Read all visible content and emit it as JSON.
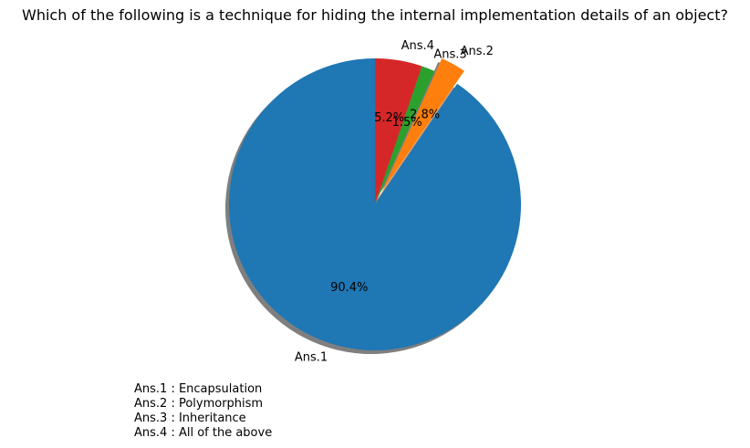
{
  "chart_data": {
    "type": "pie",
    "title": "Which of the following is a technique for hiding the internal implementation details of an object?",
    "start_angle_deg": 90,
    "direction": "counterclockwise",
    "shadow": true,
    "slices": [
      {
        "label": "Ans.1",
        "value": 90.4,
        "pct_label": "90.4%",
        "color": "#1f77b4",
        "exploded": false
      },
      {
        "label": "Ans.2",
        "value": 2.8,
        "pct_label": "2.8%",
        "color": "#ff7f0e",
        "exploded": true
      },
      {
        "label": "Ans.3",
        "value": 1.5,
        "pct_label": "1.5%",
        "color": "#2ca02c",
        "exploded": false
      },
      {
        "label": "Ans.4",
        "value": 5.2,
        "pct_label": "5.2%",
        "color": "#d62728",
        "exploded": false
      }
    ],
    "key_lines": [
      "Ans.1 : Encapsulation",
      "Ans.2 : Polymorphism",
      "Ans.3 : Inheritance",
      "Ans.4 : All of the above"
    ]
  }
}
